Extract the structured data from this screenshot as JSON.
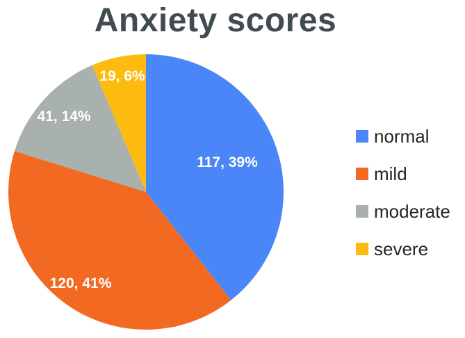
{
  "chart_data": {
    "type": "pie",
    "title": "Anxiety scores",
    "categories": [
      "normal",
      "mild",
      "moderate",
      "severe"
    ],
    "values": [
      117,
      120,
      41,
      19
    ],
    "percentages": [
      "39%",
      "41%",
      "14%",
      "6%"
    ],
    "data_labels": [
      "117, 39%",
      "120, 41%",
      "41, 14%",
      "19, 6%"
    ],
    "colors": [
      "#4a86f7",
      "#f26a21",
      "#a8b1ae",
      "#fdbb10"
    ],
    "start_angle_deg": 0,
    "direction": "clockwise",
    "legend_position": "right"
  }
}
